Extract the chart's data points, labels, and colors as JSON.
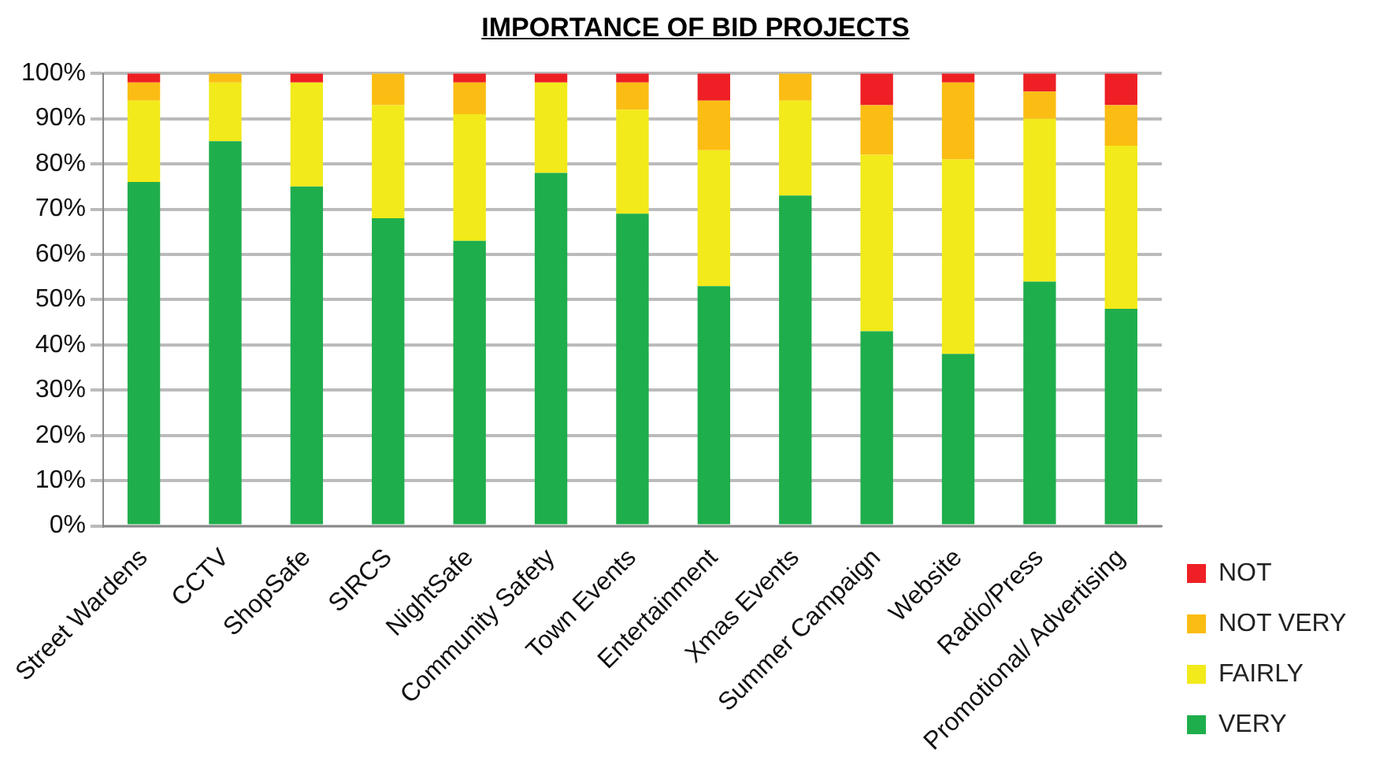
{
  "chart_data": {
    "type": "bar",
    "title": "IMPORTANCE OF BID PROJECTS",
    "stacked": true,
    "categories": [
      "Street Wardens",
      "CCTV",
      "ShopSafe",
      "SIRCS",
      "NightSafe",
      "Community Safety",
      "Town Events",
      "Entertainment",
      "Xmas Events",
      "Summer Campaign",
      "Website",
      "Radio/Press",
      "Promotional/ Advertising"
    ],
    "series": [
      {
        "name": "VERY",
        "color": "#1fae4c",
        "values": [
          76,
          85,
          75,
          68,
          63,
          78,
          69,
          53,
          73,
          43,
          38,
          54,
          48
        ]
      },
      {
        "name": "FAIRLY",
        "color": "#f2ea1a",
        "values": [
          18,
          13,
          23,
          25,
          28,
          20,
          23,
          30,
          21,
          39,
          43,
          36,
          36
        ]
      },
      {
        "name": "NOT VERY",
        "color": "#fbbd13",
        "values": [
          4,
          2,
          0,
          7,
          7,
          0,
          6,
          11,
          6,
          11,
          17,
          6,
          9
        ]
      },
      {
        "name": "NOT",
        "color": "#ee2025",
        "values": [
          2,
          0,
          2,
          0,
          2,
          2,
          2,
          6,
          0,
          7,
          2,
          4,
          7
        ]
      }
    ],
    "ylim": [
      0,
      100
    ],
    "yticks": [
      {
        "value": 0,
        "label": "0%"
      },
      {
        "value": 10,
        "label": "10%"
      },
      {
        "value": 20,
        "label": "20%"
      },
      {
        "value": 30,
        "label": "30%"
      },
      {
        "value": 40,
        "label": "40%"
      },
      {
        "value": 50,
        "label": "50%"
      },
      {
        "value": 60,
        "label": "60%"
      },
      {
        "value": 70,
        "label": "70%"
      },
      {
        "value": 80,
        "label": "80%"
      },
      {
        "value": 90,
        "label": "90%"
      },
      {
        "value": 100,
        "label": "100%"
      }
    ],
    "grid": "y",
    "legend": "right"
  }
}
